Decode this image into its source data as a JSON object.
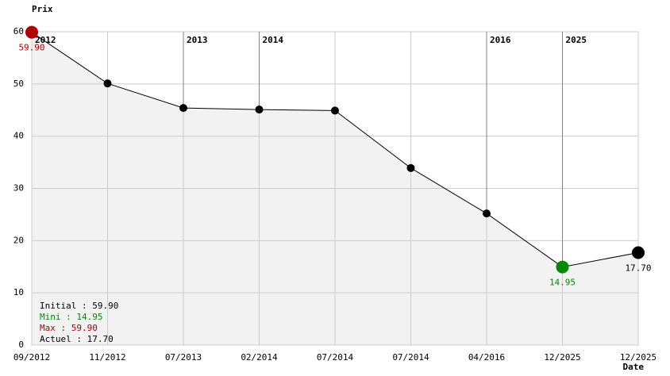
{
  "chart_data": {
    "type": "line",
    "y_label": "Prix",
    "x_label": "Date",
    "categories": [
      "09/2012",
      "11/2012",
      "07/2013",
      "02/2014",
      "07/2014",
      "07/2014",
      "04/2016",
      "12/2025",
      "12/2025"
    ],
    "values": [
      59.9,
      50.1,
      45.4,
      45.1,
      44.9,
      33.9,
      25.2,
      14.95,
      17.7
    ],
    "value_labels": [
      "59.90",
      null,
      null,
      null,
      null,
      null,
      null,
      "14.95",
      "17.70"
    ],
    "marker_colors": [
      "#b00000",
      "#000000",
      "#000000",
      "#000000",
      "#000000",
      "#000000",
      "#000000",
      "#008a00",
      "#000000"
    ],
    "year_markers": [
      "2012",
      null,
      "2013",
      "2014",
      null,
      null,
      "2016",
      "2025",
      null
    ],
    "color": "#000000",
    "area_color": "#f2f2f2",
    "ylim": [
      0,
      60
    ],
    "yticks": [
      0,
      10,
      20,
      30,
      40,
      50,
      60
    ],
    "grid": true,
    "summary": [
      {
        "text": "Initial : 59.90",
        "color": "#000000"
      },
      {
        "text": "Mini : 14.95",
        "color": "#008a00"
      },
      {
        "text": "Max : 59.90",
        "color": "#b00000"
      },
      {
        "text": "Actuel : 17.70",
        "color": "#000000"
      }
    ]
  }
}
